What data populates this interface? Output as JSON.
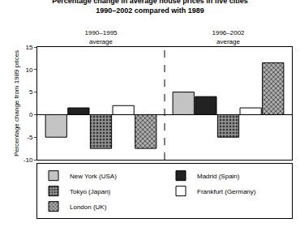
{
  "chart_data": {
    "type": "bar",
    "title": "Percentage change in average house prices in five cities",
    "subtitle": "1990–2002 compared with 1989",
    "y_label": "Percentage change from 1989 prices",
    "categories": [
      "1990–1995 average",
      "1996–2002 average"
    ],
    "series": [
      {
        "name": "New York (USA)",
        "color": "#c4c4c4",
        "values": [
          -5,
          5
        ]
      },
      {
        "name": "Madrid (Spain)",
        "color": "#222222",
        "values": [
          1.5,
          4
        ]
      },
      {
        "name": "Tokyo (Japan)",
        "color": "#909090",
        "marker": "dots",
        "values": [
          -7.5,
          -5
        ]
      },
      {
        "name": "Frankfurt (Germany)",
        "color": "#ffffff",
        "values": [
          2,
          1.5
        ]
      },
      {
        "name": "London (UK)",
        "color": "#b0b0b0",
        "marker": "crosshatch",
        "values": [
          -7.5,
          11.5
        ]
      }
    ],
    "ylim": [
      -10,
      15
    ],
    "yticks": [
      -10,
      -5,
      0,
      5,
      10,
      15
    ],
    "grid": false,
    "legend": "bottom"
  }
}
